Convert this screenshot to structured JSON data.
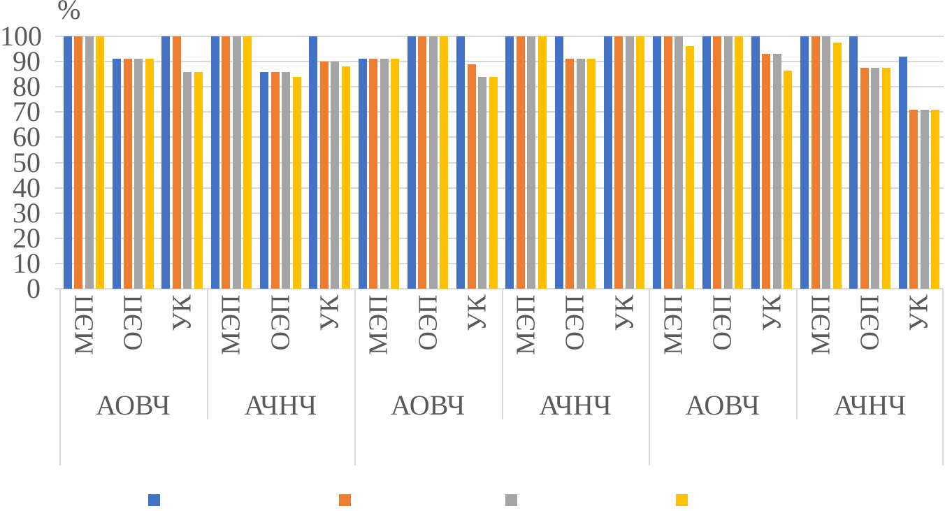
{
  "chart_data": {
    "type": "bar",
    "unit": "%",
    "ylim": [
      0,
      100
    ],
    "ytick_step": 10,
    "ytick_labels": [
      "100",
      "90",
      "80",
      "70",
      "60",
      "50",
      "40",
      "30",
      "20",
      "10",
      "0"
    ],
    "grid": true,
    "series_colors": [
      "#4472C4",
      "#ED7D31",
      "#A5A5A5",
      "#FFC000"
    ],
    "legend": {
      "position": "bottom",
      "swatch_colors": [
        "#4472C4",
        "#ED7D31",
        "#A5A5A5",
        "#FFC000"
      ],
      "labels": [
        "",
        "",
        "",
        ""
      ]
    },
    "axis_color": "#D9D9D9",
    "text_color": "#595959",
    "sections": [
      {
        "label": "АОВЧ",
        "groups": [
          {
            "label": "МЭП",
            "values": [
              100,
              100,
              100,
              100
            ]
          },
          {
            "label": "ОЭП",
            "values": [
              91,
              91,
              91,
              91
            ]
          },
          {
            "label": "УК",
            "values": [
              100,
              100,
              86,
              86
            ]
          }
        ]
      },
      {
        "label": "АЧНЧ",
        "groups": [
          {
            "label": "МЭП",
            "values": [
              100,
              100,
              100,
              100
            ]
          },
          {
            "label": "ОЭП",
            "values": [
              86,
              86,
              86,
              84
            ]
          },
          {
            "label": "УК",
            "values": [
              100,
              90,
              90,
              88
            ]
          }
        ]
      },
      {
        "label": "АОВЧ",
        "groups": [
          {
            "label": "МЭП",
            "values": [
              91,
              91,
              91,
              91
            ]
          },
          {
            "label": "ОЭП",
            "values": [
              100,
              100,
              100,
              100
            ]
          },
          {
            "label": "УК",
            "values": [
              100,
              89,
              84,
              84
            ]
          }
        ]
      },
      {
        "label": "АЧНЧ",
        "groups": [
          {
            "label": "МЭП",
            "values": [
              100,
              100,
              100,
              100
            ]
          },
          {
            "label": "ОЭП",
            "values": [
              100,
              91,
              91,
              91
            ]
          },
          {
            "label": "УК",
            "values": [
              100,
              100,
              100,
              100
            ]
          }
        ]
      },
      {
        "label": "АОВЧ",
        "groups": [
          {
            "label": "МЭП",
            "values": [
              100,
              100,
              100,
              96
            ]
          },
          {
            "label": "ОЭП",
            "values": [
              100,
              100,
              100,
              100
            ]
          },
          {
            "label": "УК",
            "values": [
              100,
              93,
              93,
              86.5
            ]
          }
        ]
      },
      {
        "label": "АЧНЧ",
        "groups": [
          {
            "label": "МЭП",
            "values": [
              100,
              100,
              100,
              97.5
            ]
          },
          {
            "label": "ОЭП",
            "values": [
              100,
              87.5,
              87.5,
              87.5
            ]
          },
          {
            "label": "УК",
            "values": [
              92,
              71,
              71,
              71
            ]
          }
        ]
      }
    ]
  }
}
